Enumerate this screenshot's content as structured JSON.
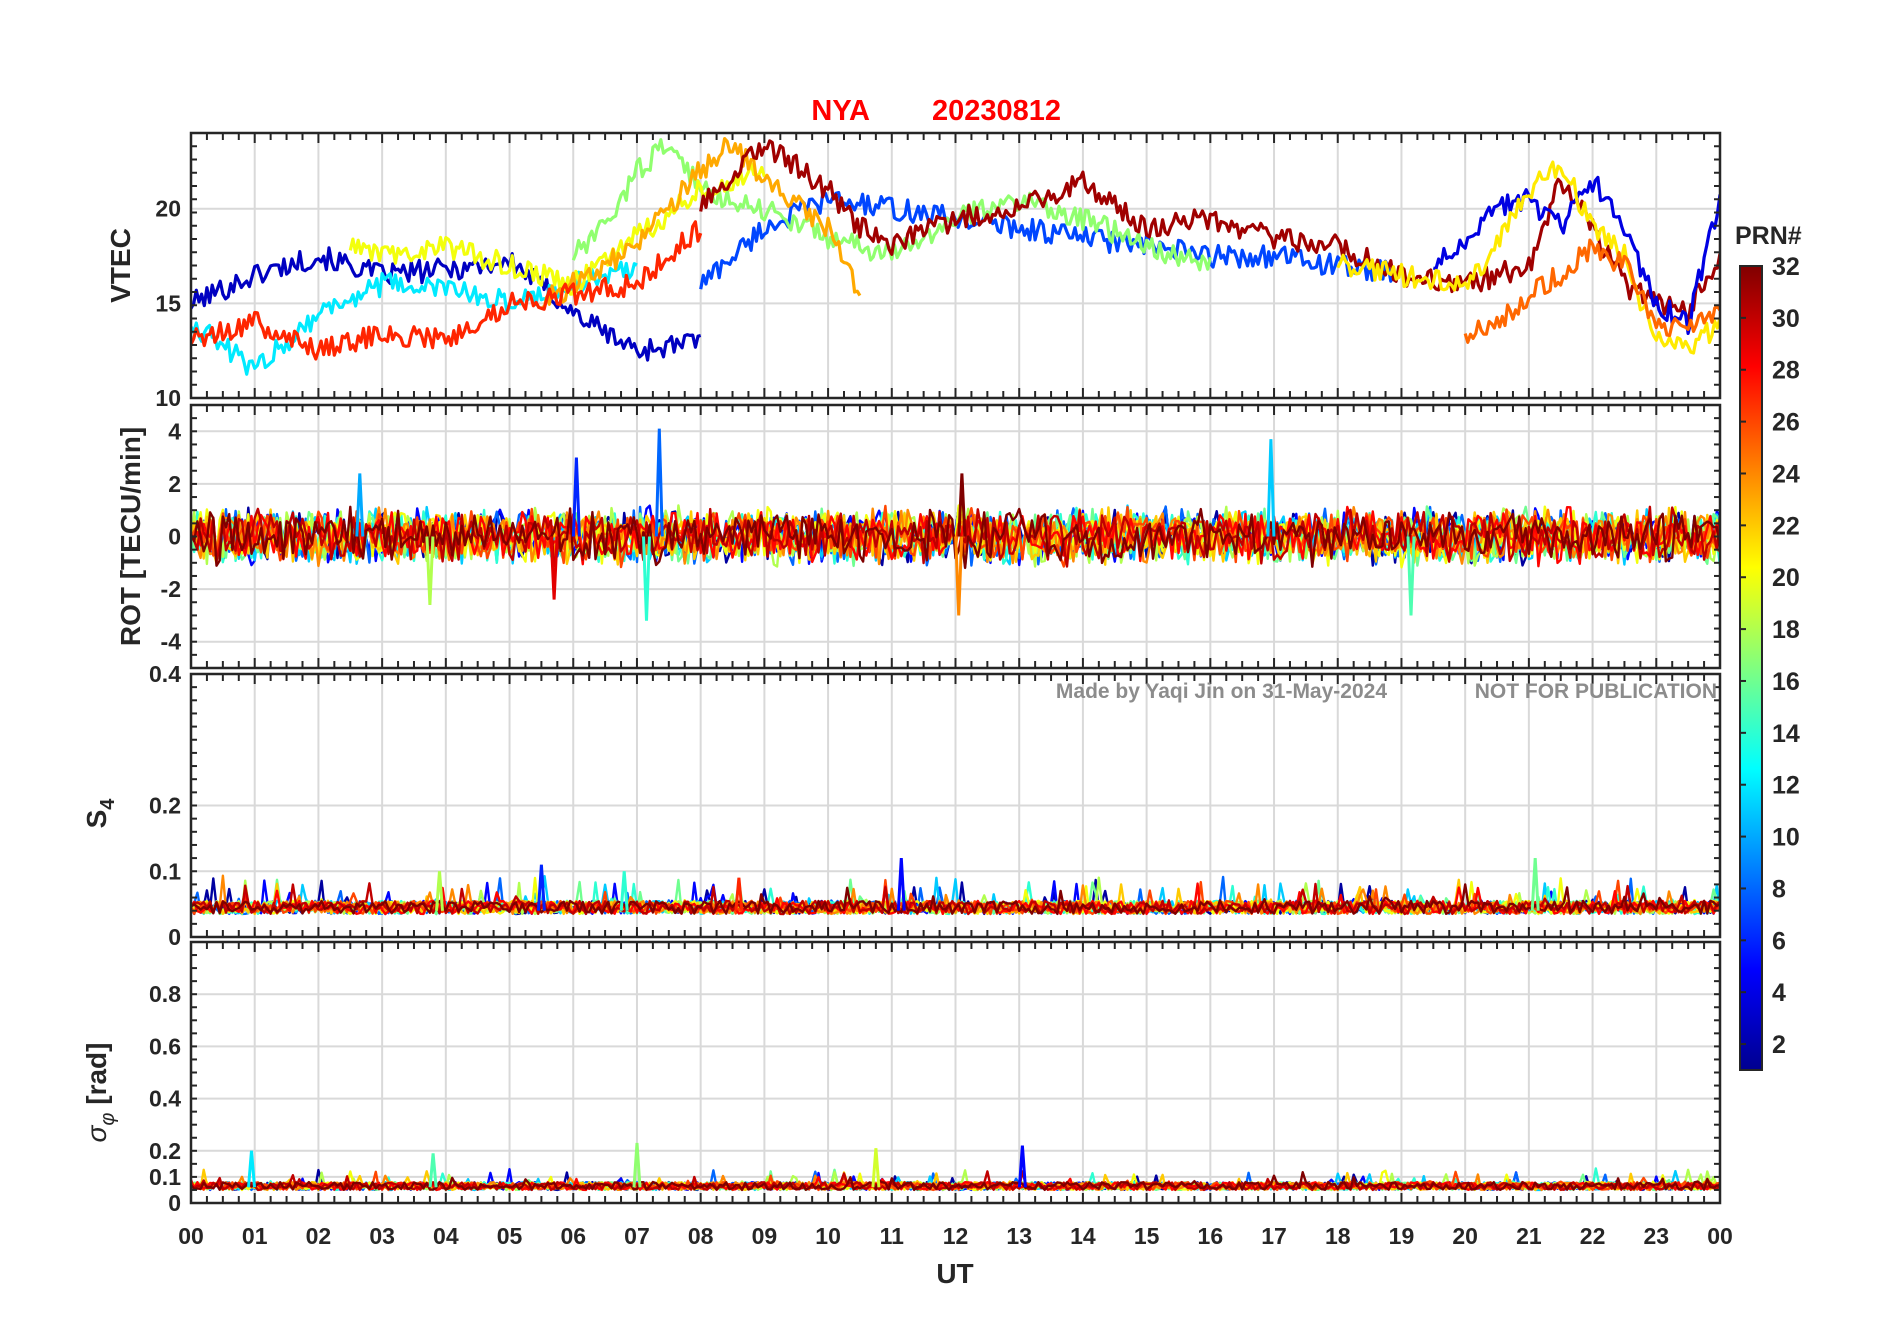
{
  "chart_data": {
    "type": "line",
    "title": {
      "station": "NYA",
      "date": "20230812"
    },
    "xlabel": "UT",
    "x_ticks": [
      "00",
      "01",
      "02",
      "03",
      "04",
      "05",
      "06",
      "07",
      "08",
      "09",
      "10",
      "11",
      "12",
      "13",
      "14",
      "15",
      "16",
      "17",
      "18",
      "19",
      "20",
      "21",
      "22",
      "23",
      "00"
    ],
    "xlim": [
      0,
      24
    ],
    "watermark": {
      "author": "Made by Yaqi Jin on 31-May-2024",
      "notice": "NOT FOR PUBLICATION"
    },
    "colorbar": {
      "label": "PRN#",
      "range": [
        1,
        32
      ],
      "ticks": [
        "2",
        "4",
        "6",
        "8",
        "10",
        "12",
        "14",
        "16",
        "18",
        "20",
        "22",
        "24",
        "26",
        "28",
        "30",
        "32"
      ],
      "colormap": "jet"
    },
    "panels": [
      {
        "id": "vtec",
        "ylabel": "VTEC",
        "ylim": [
          10,
          24
        ],
        "yticks": [
          10,
          15,
          20
        ],
        "ytick_labels": [
          "10",
          "15",
          "20"
        ],
        "series_summary": "Multiple PRN tracks; VTEC about 12-17 TECU from 00-06 UT, rising to 18-23 TECU from 07-14 UT, about 15-21 TECU from 14-22 UT, dropping to about 13-15 TECU near 23 UT",
        "series": [
          {
            "prn": 3,
            "x": [
              0.0,
              1,
              2,
              3,
              4,
              5,
              5.5,
              6,
              7,
              8
            ],
            "y": [
              15.0,
              16.5,
              17.5,
              16.5,
              16.8,
              17.2,
              16,
              14.5,
              12.5,
              13
            ]
          },
          {
            "prn": 7,
            "x": [
              8,
              9,
              10,
              11,
              12,
              13,
              14,
              15,
              16,
              17,
              18,
              19
            ],
            "y": [
              16,
              19,
              20.5,
              20,
              19.5,
              19,
              18.5,
              18,
              17.5,
              17.5,
              17,
              16.5
            ]
          },
          {
            "prn": 12,
            "x": [
              0,
              1,
              2,
              3,
              4,
              5,
              6,
              7
            ],
            "y": [
              14,
              11.5,
              14.5,
              16,
              15.8,
              15,
              16,
              17
            ]
          },
          {
            "prn": 17,
            "x": [
              6,
              6.5,
              7,
              7.5,
              8,
              9,
              10,
              11,
              12,
              13,
              14,
              15,
              16
            ],
            "y": [
              17.5,
              19,
              22,
              23.5,
              21,
              20,
              18.5,
              17.5,
              19.5,
              20.5,
              19.5,
              18,
              17
            ]
          },
          {
            "prn": 20,
            "x": [
              2.5,
              3,
              4,
              5,
              6,
              7,
              8,
              9
            ],
            "y": [
              18,
              17.5,
              18,
              17,
              16,
              18.5,
              21,
              22
            ]
          },
          {
            "prn": 23,
            "x": [
              5.5,
              6,
              7,
              8,
              8.5,
              9,
              10,
              10.5
            ],
            "y": [
              15,
              16,
              18,
              22,
              23.5,
              21.5,
              19,
              15.5
            ]
          },
          {
            "prn": 27,
            "x": [
              0,
              1,
              2,
              3,
              4,
              5,
              6,
              7,
              8
            ],
            "y": [
              13,
              14,
              12.5,
              13.5,
              13,
              15,
              15.5,
              16,
              19
            ]
          },
          {
            "prn": 31,
            "x": [
              8,
              9,
              10,
              10.5,
              11,
              12,
              13,
              14,
              15,
              16,
              17,
              18,
              19,
              20,
              21,
              21.5,
              22,
              22.5,
              23,
              23.5,
              24
            ],
            "y": [
              20,
              23.5,
              21,
              19,
              18,
              19.5,
              20,
              21.5,
              19,
              19.5,
              18.5,
              18,
              16.5,
              16,
              17,
              21.5,
              19,
              16,
              15,
              14.5,
              17.5
            ]
          },
          {
            "prn": 4,
            "x": [
              19.5,
              20,
              20.5,
              21,
              21.5,
              22,
              22.5,
              23,
              23.5,
              24
            ],
            "y": [
              17,
              18,
              20,
              20.5,
              19,
              21.5,
              19,
              15,
              14,
              20.5
            ]
          },
          {
            "prn": 21,
            "x": [
              18,
              19,
              20,
              20.5,
              21,
              21.5,
              22,
              22.5,
              23,
              23.5,
              24
            ],
            "y": [
              17,
              16.5,
              16,
              18,
              21,
              22.5,
              19,
              17.5,
              13,
              12.5,
              14
            ]
          },
          {
            "prn": 25,
            "x": [
              20,
              20.5,
              21,
              21.5,
              22,
              22.5,
              23,
              23.5,
              24
            ],
            "y": [
              13.5,
              14,
              15.5,
              16.5,
              18,
              17,
              14,
              13.5,
              14.5
            ]
          }
        ]
      },
      {
        "id": "rot",
        "ylabel": "ROT [TECU/min]",
        "ylim": [
          -5,
          5
        ],
        "yticks": [
          -4,
          -2,
          0,
          2,
          4
        ],
        "ytick_labels": [
          "-4",
          "-2",
          "0",
          "2",
          "4"
        ],
        "series_summary": "Noisy ROT centered on 0; typical amplitude +/-1 TECU/min with spikes up to about +4.1 near 07:20 and 16:55 UT and down to -3.2 near 07:10 UT and -3.0 near 12:00 UT",
        "spikes": [
          {
            "prn": 8,
            "x": 7.35,
            "y": 4.1
          },
          {
            "prn": 11,
            "x": 16.95,
            "y": 3.7
          },
          {
            "prn": 6,
            "x": 6.05,
            "y": 3.0
          },
          {
            "prn": 10,
            "x": 2.65,
            "y": 2.4
          },
          {
            "prn": 14,
            "x": 7.15,
            "y": -3.2
          },
          {
            "prn": 24,
            "x": 12.05,
            "y": -3.0
          },
          {
            "prn": 18,
            "x": 3.75,
            "y": -2.6
          },
          {
            "prn": 15,
            "x": 19.15,
            "y": -3.0
          },
          {
            "prn": 29,
            "x": 5.7,
            "y": -2.4
          },
          {
            "prn": 32,
            "x": 12.1,
            "y": 2.4
          }
        ]
      },
      {
        "id": "s4",
        "ylabel": "S4",
        "ylim": [
          0,
          0.4
        ],
        "yticks": [
          0,
          0.1,
          0.2,
          0.4
        ],
        "ytick_labels": [
          "0",
          "0.1",
          "0.2",
          "0.4"
        ],
        "series_summary": "S4 mostly 0.03-0.06 throughout the day with peaks up to about 0.12 near 05:30, 11:10 and 21:10 UT",
        "peaks": [
          {
            "prn": 6,
            "x": 5.5,
            "y": 0.11
          },
          {
            "prn": 5,
            "x": 11.15,
            "y": 0.12
          },
          {
            "prn": 16,
            "x": 21.1,
            "y": 0.12
          },
          {
            "prn": 18,
            "x": 3.9,
            "y": 0.1
          },
          {
            "prn": 27,
            "x": 8.6,
            "y": 0.09
          },
          {
            "prn": 14,
            "x": 6.8,
            "y": 0.1
          }
        ]
      },
      {
        "id": "sigma_phi",
        "ylabel": "σ_φ [rad]",
        "ylim": [
          0,
          1
        ],
        "yticks": [
          0,
          0.1,
          0.2,
          0.4,
          0.6,
          0.8
        ],
        "ytick_labels": [
          "0",
          "0.1",
          "0.2",
          "0.4",
          "0.6",
          "0.8"
        ],
        "series_summary": "Sigma phi mostly 0.03-0.10 rad with small peaks around 0.2 rad near 01:00, 07:00-07:30, 09:30-10:50 and 13:05 UT",
        "peaks": [
          {
            "prn": 12,
            "x": 0.95,
            "y": 0.2
          },
          {
            "prn": 17,
            "x": 7.0,
            "y": 0.23
          },
          {
            "prn": 19,
            "x": 10.75,
            "y": 0.21
          },
          {
            "prn": 5,
            "x": 13.05,
            "y": 0.22
          },
          {
            "prn": 15,
            "x": 3.8,
            "y": 0.19
          }
        ]
      }
    ]
  }
}
